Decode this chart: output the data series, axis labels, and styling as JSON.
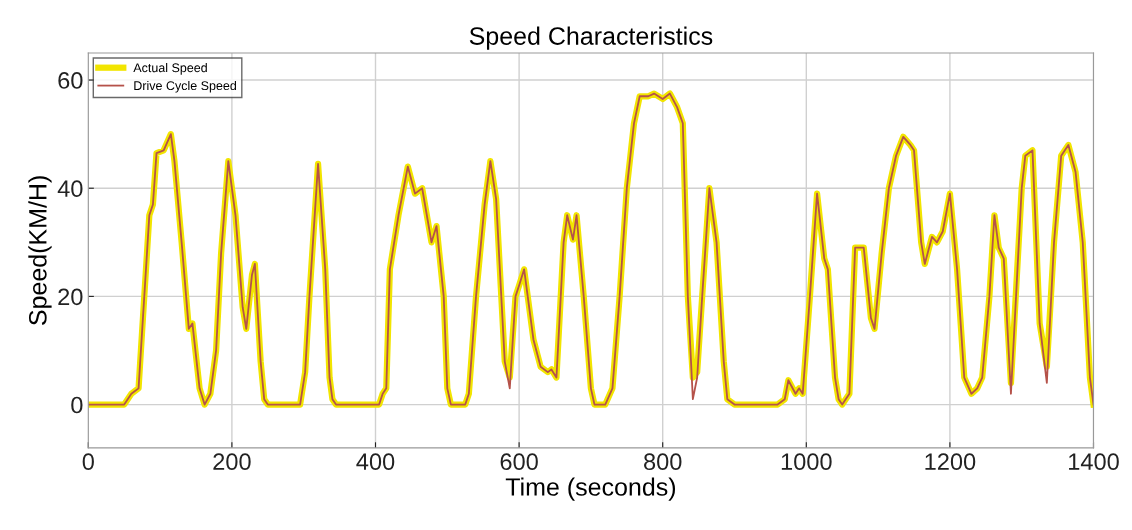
{
  "chart_data": {
    "type": "line",
    "title": "Speed Characteristics",
    "xlabel": "Time (seconds)",
    "ylabel": "Speed(KM/H)",
    "xlim": [
      0,
      1400
    ],
    "ylim": [
      -8,
      65
    ],
    "xticks": [
      0,
      200,
      400,
      600,
      800,
      1000,
      1200,
      1400
    ],
    "yticks": [
      0,
      20,
      40,
      60
    ],
    "grid": true,
    "legend": "top left",
    "series": [
      {
        "name": "Actual Speed",
        "color": "#f2e500",
        "x": [
          0,
          50,
          60,
          70,
          85,
          90,
          95,
          105,
          115,
          120,
          130,
          140,
          145,
          155,
          162,
          170,
          178,
          185,
          195,
          205,
          215,
          220,
          228,
          232,
          240,
          245,
          250,
          295,
          302,
          308,
          320,
          330,
          336,
          340,
          345,
          395,
          405,
          410,
          415,
          420,
          432,
          445,
          455,
          465,
          478,
          485,
          495,
          500,
          505,
          525,
          530,
          540,
          552,
          560,
          568,
          580,
          587,
          595,
          600,
          607,
          620,
          630,
          640,
          645,
          652,
          662,
          667,
          675,
          680,
          690,
          700,
          705,
          720,
          730,
          740,
          750,
          760,
          768,
          780,
          788,
          800,
          810,
          820,
          828,
          835,
          842,
          848,
          855,
          865,
          875,
          885,
          890,
          900,
          960,
          970,
          975,
          985,
          990,
          995,
          1005,
          1015,
          1025,
          1030,
          1040,
          1045,
          1050,
          1060,
          1068,
          1080,
          1090,
          1095,
          1105,
          1115,
          1125,
          1135,
          1145,
          1150,
          1160,
          1165,
          1175,
          1182,
          1190,
          1200,
          1210,
          1220,
          1230,
          1238,
          1245,
          1255,
          1262,
          1268,
          1275,
          1285,
          1300,
          1305,
          1315,
          1325,
          1335,
          1345,
          1355,
          1365,
          1375,
          1385,
          1395,
          1400
        ],
        "values": [
          0,
          0,
          2,
          3,
          35,
          37,
          46.5,
          47,
          50,
          45,
          30,
          14,
          15,
          3,
          0,
          2,
          10,
          28,
          45,
          35,
          18,
          14,
          24,
          26,
          8,
          1,
          0,
          0,
          6,
          20,
          44.5,
          25,
          5,
          1,
          0,
          0,
          0,
          2,
          3,
          25,
          35,
          44,
          39,
          40,
          30,
          33,
          20,
          3,
          0,
          0,
          2,
          20,
          37,
          45,
          38,
          8,
          5,
          20,
          22,
          25,
          12,
          7,
          6,
          6.5,
          5,
          30,
          35,
          30.5,
          35,
          20,
          3,
          0,
          0,
          3,
          20,
          40,
          52,
          57,
          57,
          57.5,
          56.5,
          57.5,
          55,
          52,
          20,
          5,
          6,
          20,
          40,
          30,
          8,
          1,
          0,
          0,
          1,
          4.5,
          2,
          3,
          2,
          20,
          39,
          27,
          25,
          5,
          1,
          0,
          2,
          29,
          29,
          16,
          14,
          28,
          40,
          46,
          49.5,
          48,
          47,
          30,
          26,
          31,
          30,
          32,
          39,
          25,
          5,
          2,
          3,
          5,
          20,
          35,
          29,
          27,
          4,
          40,
          46,
          47,
          15,
          7,
          30,
          46,
          48,
          43,
          30,
          5,
          0
        ]
      },
      {
        "name": "Drive Cycle Speed",
        "color": "#b5524a",
        "x": [
          0,
          50,
          60,
          70,
          85,
          90,
          95,
          105,
          115,
          120,
          130,
          140,
          145,
          155,
          162,
          170,
          178,
          185,
          195,
          205,
          215,
          220,
          228,
          232,
          240,
          245,
          250,
          295,
          302,
          308,
          320,
          330,
          336,
          340,
          345,
          395,
          405,
          410,
          415,
          420,
          432,
          445,
          455,
          465,
          478,
          485,
          495,
          500,
          505,
          525,
          530,
          540,
          552,
          560,
          568,
          580,
          587,
          595,
          600,
          607,
          620,
          630,
          640,
          645,
          652,
          662,
          667,
          675,
          680,
          690,
          700,
          705,
          720,
          730,
          740,
          750,
          760,
          768,
          780,
          788,
          800,
          810,
          820,
          828,
          835,
          842,
          848,
          855,
          865,
          875,
          885,
          890,
          900,
          960,
          970,
          975,
          985,
          990,
          995,
          1005,
          1015,
          1025,
          1030,
          1040,
          1045,
          1050,
          1060,
          1068,
          1080,
          1090,
          1095,
          1105,
          1115,
          1125,
          1135,
          1145,
          1150,
          1160,
          1165,
          1175,
          1182,
          1190,
          1200,
          1210,
          1220,
          1230,
          1238,
          1245,
          1255,
          1262,
          1268,
          1275,
          1285,
          1300,
          1305,
          1315,
          1325,
          1335,
          1345,
          1355,
          1365,
          1375,
          1385,
          1395,
          1400
        ],
        "values": [
          0,
          0,
          2,
          3,
          35,
          37,
          46.5,
          47,
          50,
          45,
          30,
          14,
          15,
          3,
          0,
          2,
          10,
          28,
          45,
          35,
          18,
          14,
          24,
          26,
          8,
          1,
          0,
          0,
          6,
          20,
          44.5,
          25,
          5,
          1,
          0,
          0,
          0,
          2,
          3,
          25,
          35,
          44,
          39,
          40,
          30,
          33,
          20,
          3,
          0,
          0,
          2,
          20,
          37,
          45,
          38,
          8,
          3,
          20,
          22,
          25,
          12,
          7,
          6,
          6.5,
          5,
          30,
          35,
          30.5,
          35,
          20,
          3,
          0,
          0,
          3,
          20,
          40,
          52,
          57,
          57,
          57.5,
          56.5,
          57.5,
          55,
          52,
          20,
          1,
          5,
          20,
          40,
          30,
          8,
          1,
          0,
          0,
          1,
          4.5,
          2,
          3,
          2,
          20,
          39,
          27,
          25,
          5,
          1,
          0,
          2,
          29,
          29,
          16,
          14,
          28,
          40,
          46,
          49.5,
          48,
          47,
          30,
          26,
          31,
          30,
          32,
          39,
          25,
          5,
          2,
          3,
          5,
          20,
          35,
          29,
          27,
          2,
          40,
          46,
          47,
          15,
          4,
          30,
          46,
          48,
          43,
          30,
          5,
          0
        ]
      }
    ]
  }
}
